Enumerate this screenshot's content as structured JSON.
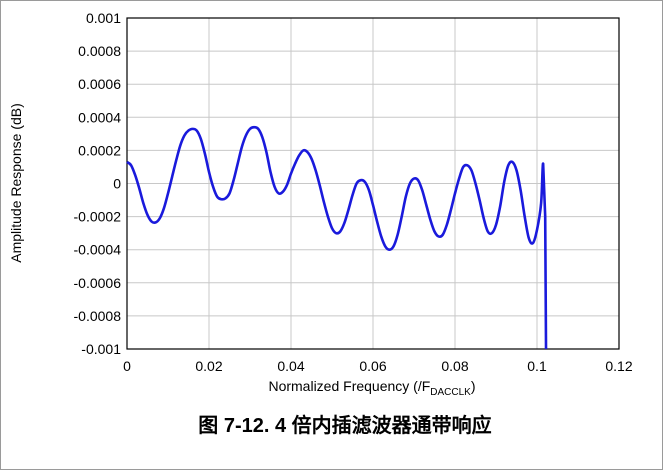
{
  "chart_data": {
    "type": "line",
    "title": "",
    "caption": "图 7-12. 4 倍内插滤波器通带响应",
    "xlabel_main": "Normalized Frequency (/F",
    "xlabel_sub": "DACCLK",
    "xlabel_end": ")",
    "ylabel": "Amplitude Response (dB)",
    "xlim": [
      0,
      0.12
    ],
    "ylim": [
      -0.001,
      0.001
    ],
    "x_ticks": [
      0,
      0.02,
      0.04,
      0.06,
      0.08,
      0.1,
      0.12
    ],
    "x_tick_labels": [
      "0",
      "0.02",
      "0.04",
      "0.06",
      "0.08",
      "0.1",
      "0.12"
    ],
    "y_ticks": [
      0.001,
      0.0008,
      0.0006,
      0.0004,
      0.0002,
      0,
      -0.0002,
      -0.0004,
      -0.0006,
      -0.0008,
      -0.001
    ],
    "y_tick_labels": [
      "0.001",
      "0.0008",
      "0.0006",
      "0.0004",
      "0.0002",
      "0",
      "-0.0002",
      "-0.0004",
      "-0.0006",
      "-0.0008",
      "-0.001"
    ],
    "grid": true,
    "line_color": "#1a1adc",
    "series": [
      {
        "x": [
          0,
          0.001,
          0.002,
          0.003,
          0.004,
          0.005,
          0.006,
          0.007,
          0.008,
          0.009,
          0.01,
          0.011,
          0.012,
          0.013,
          0.014,
          0.015,
          0.016,
          0.017,
          0.018,
          0.019,
          0.02,
          0.021,
          0.022,
          0.023,
          0.024,
          0.025,
          0.026,
          0.027,
          0.028,
          0.029,
          0.03,
          0.031,
          0.032,
          0.033,
          0.034,
          0.035,
          0.036,
          0.037,
          0.038,
          0.039,
          0.04,
          0.041,
          0.042,
          0.043,
          0.044,
          0.045,
          0.046,
          0.047,
          0.048,
          0.049,
          0.05,
          0.051,
          0.052,
          0.053,
          0.054,
          0.055,
          0.056,
          0.057,
          0.058,
          0.059,
          0.06,
          0.061,
          0.062,
          0.063,
          0.064,
          0.065,
          0.066,
          0.067,
          0.068,
          0.069,
          0.07,
          0.071,
          0.072,
          0.073,
          0.074,
          0.075,
          0.076,
          0.077,
          0.078,
          0.079,
          0.08,
          0.081,
          0.082,
          0.083,
          0.084,
          0.085,
          0.086,
          0.087,
          0.088,
          0.089,
          0.09,
          0.091,
          0.092,
          0.093,
          0.094,
          0.095,
          0.096,
          0.097,
          0.098,
          0.099,
          0.1,
          0.101,
          0.1015,
          0.102,
          0.1022
        ],
        "y": [
          0.00013,
          0.00011,
          5e-05,
          -3e-05,
          -0.00012,
          -0.00019,
          -0.00023,
          -0.000235,
          -0.00021,
          -0.00015,
          -6e-05,
          4e-05,
          0.00014,
          0.00023,
          0.00029,
          0.00032,
          0.00033,
          0.00032,
          0.00027,
          0.00018,
          7e-05,
          -2e-05,
          -8e-05,
          -9.5e-05,
          -9e-05,
          -6e-05,
          2e-05,
          0.00012,
          0.00022,
          0.00029,
          0.00033,
          0.00034,
          0.00033,
          0.00028,
          0.00019,
          7e-05,
          -2e-05,
          -6e-05,
          -5e-05,
          -1e-05,
          6e-05,
          0.00012,
          0.00017,
          0.0002,
          0.00019,
          0.00015,
          8e-05,
          -1e-05,
          -0.00011,
          -0.0002,
          -0.00027,
          -0.0003,
          -0.00029,
          -0.00024,
          -0.00016,
          -7e-05,
          0.0,
          2e-05,
          1e-05,
          -4e-05,
          -0.00013,
          -0.00023,
          -0.00032,
          -0.00038,
          -0.0004,
          -0.00038,
          -0.00031,
          -0.0002,
          -8e-05,
          0.0,
          3e-05,
          2e-05,
          -4e-05,
          -0.00013,
          -0.00022,
          -0.00029,
          -0.00032,
          -0.00031,
          -0.00025,
          -0.00016,
          -6e-05,
          3e-05,
          0.0001,
          0.00011,
          8e-05,
          0.0,
          -0.0001,
          -0.00021,
          -0.00029,
          -0.0003,
          -0.00025,
          -0.00014,
          1e-05,
          0.00011,
          0.00013,
          8e-05,
          -4e-05,
          -0.0002,
          -0.00033,
          -0.00036,
          -0.00028,
          -0.00012,
          0.00012,
          -0.0002,
          -0.001
        ]
      }
    ]
  }
}
